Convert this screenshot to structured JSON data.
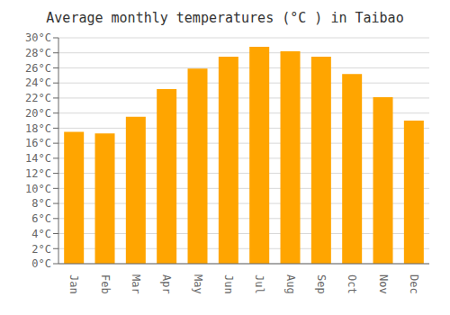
{
  "chart_data": {
    "type": "bar",
    "title": "Average monthly temperatures (°C ) in Taibao",
    "categories": [
      "Jan",
      "Feb",
      "Mar",
      "Apr",
      "May",
      "Jun",
      "Jul",
      "Aug",
      "Sep",
      "Oct",
      "Nov",
      "Dec"
    ],
    "values": [
      17.5,
      17.3,
      19.5,
      23.2,
      25.9,
      27.5,
      28.8,
      28.2,
      27.5,
      25.2,
      22.1,
      19.0
    ],
    "color": "#FFA500",
    "ylim": [
      0,
      30
    ],
    "yticks": [
      {
        "value": 0,
        "label": "0°C"
      },
      {
        "value": 2,
        "label": "2°C"
      },
      {
        "value": 4,
        "label": "4°C"
      },
      {
        "value": 6,
        "label": "6°C"
      },
      {
        "value": 8,
        "label": "8°C"
      },
      {
        "value": 10,
        "label": "10°C"
      },
      {
        "value": 12,
        "label": "12°C"
      },
      {
        "value": 14,
        "label": "14°C"
      },
      {
        "value": 16,
        "label": "16°C"
      },
      {
        "value": 18,
        "label": "18°C"
      },
      {
        "value": 20,
        "label": "20°C"
      },
      {
        "value": 22,
        "label": "22°C"
      },
      {
        "value": 24,
        "label": "24°C"
      },
      {
        "value": 26,
        "label": "26°C"
      },
      {
        "value": 28,
        "label": "28°C"
      },
      {
        "value": 30,
        "label": "30°C"
      }
    ],
    "grid": true
  }
}
